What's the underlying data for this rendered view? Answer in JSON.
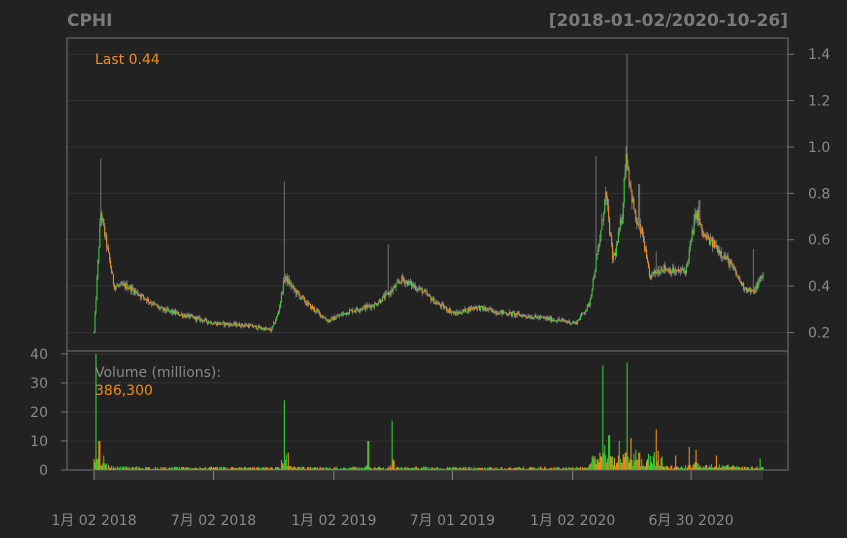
{
  "chart_data": {
    "type": "candlestick",
    "title": "CPHI",
    "date_range": "[2018-01-02/2020-10-26]",
    "background": "#222222",
    "colors": {
      "up": "#33cc33",
      "down": "#f28c1a",
      "wick": "#888888",
      "grid": "#333333",
      "frame": "#777777"
    },
    "price_panel": {
      "last_label": "Last 0.44",
      "ylim": [
        0.12,
        1.47
      ],
      "yticks": [
        0.2,
        0.4,
        0.6,
        0.8,
        1.0,
        1.2,
        1.4
      ],
      "ytick_labels": [
        "0.2",
        "0.4",
        "0.6",
        "0.8",
        "1.0",
        "1.2",
        "1.4"
      ],
      "anchors": [
        [
          0.0,
          0.2
        ],
        [
          0.01,
          0.72
        ],
        [
          0.03,
          0.4
        ],
        [
          0.05,
          0.4
        ],
        [
          0.07,
          0.36
        ],
        [
          0.1,
          0.3
        ],
        [
          0.14,
          0.27
        ],
        [
          0.18,
          0.24
        ],
        [
          0.23,
          0.23
        ],
        [
          0.265,
          0.21
        ],
        [
          0.275,
          0.28
        ],
        [
          0.285,
          0.44
        ],
        [
          0.3,
          0.38
        ],
        [
          0.32,
          0.32
        ],
        [
          0.35,
          0.25
        ],
        [
          0.38,
          0.29
        ],
        [
          0.42,
          0.32
        ],
        [
          0.445,
          0.38
        ],
        [
          0.46,
          0.43
        ],
        [
          0.49,
          0.38
        ],
        [
          0.51,
          0.33
        ],
        [
          0.54,
          0.28
        ],
        [
          0.57,
          0.31
        ],
        [
          0.6,
          0.29
        ],
        [
          0.65,
          0.27
        ],
        [
          0.7,
          0.25
        ],
        [
          0.72,
          0.24
        ],
        [
          0.74,
          0.32
        ],
        [
          0.755,
          0.58
        ],
        [
          0.765,
          0.8
        ],
        [
          0.775,
          0.52
        ],
        [
          0.78,
          0.55
        ],
        [
          0.79,
          0.72
        ],
        [
          0.795,
          0.98
        ],
        [
          0.803,
          0.8
        ],
        [
          0.81,
          0.68
        ],
        [
          0.82,
          0.62
        ],
        [
          0.83,
          0.44
        ],
        [
          0.85,
          0.48
        ],
        [
          0.87,
          0.46
        ],
        [
          0.885,
          0.47
        ],
        [
          0.9,
          0.72
        ],
        [
          0.91,
          0.62
        ],
        [
          0.93,
          0.57
        ],
        [
          0.95,
          0.5
        ],
        [
          0.97,
          0.4
        ],
        [
          0.985,
          0.37
        ],
        [
          1.0,
          0.45
        ]
      ],
      "spikes": [
        [
          0.01,
          0.95
        ],
        [
          0.284,
          0.85
        ],
        [
          0.44,
          0.58
        ],
        [
          0.75,
          0.96
        ],
        [
          0.797,
          1.4
        ],
        [
          0.815,
          0.84
        ],
        [
          0.84,
          0.55
        ],
        [
          0.905,
          0.77
        ],
        [
          0.985,
          0.56
        ]
      ]
    },
    "volume_panel": {
      "label": "Volume (millions):",
      "last_value": "386,300",
      "ylim": [
        0,
        41
      ],
      "yticks": [
        0,
        10,
        20,
        30,
        40
      ],
      "ytick_labels": [
        "0",
        "10",
        "20",
        "30",
        "40"
      ],
      "spikes": [
        [
          0.003,
          40
        ],
        [
          0.008,
          10
        ],
        [
          0.015,
          5
        ],
        [
          0.284,
          24
        ],
        [
          0.29,
          6
        ],
        [
          0.41,
          10
        ],
        [
          0.445,
          17
        ],
        [
          0.76,
          36
        ],
        [
          0.77,
          12
        ],
        [
          0.785,
          10
        ],
        [
          0.797,
          37
        ],
        [
          0.803,
          11
        ],
        [
          0.81,
          7
        ],
        [
          0.815,
          6
        ],
        [
          0.84,
          14
        ],
        [
          0.87,
          5
        ],
        [
          0.89,
          8
        ],
        [
          0.9,
          7
        ],
        [
          0.93,
          5
        ],
        [
          0.995,
          4
        ]
      ]
    },
    "x_labels": [
      "1月 02 2018",
      "7月 02 2018",
      "1月 02 2019",
      "7月 01 2019",
      "1月 02 2020",
      "6月 30 2020"
    ],
    "x_label_positions": [
      0.0,
      0.1787,
      0.3585,
      0.5357,
      0.7155,
      0.8925
    ]
  }
}
